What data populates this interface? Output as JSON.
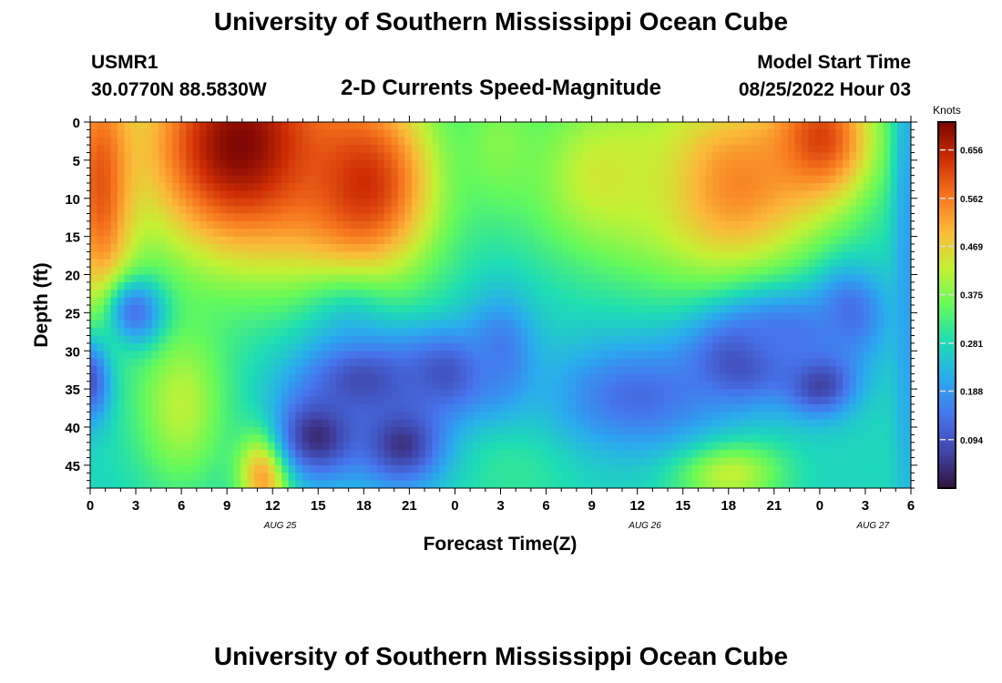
{
  "page": {
    "title": "University of Southern Mississippi Ocean Cube",
    "title_repeat": "University of Southern Mississippi Ocean Cube"
  },
  "station": {
    "id": "USMR1",
    "location": "30.0770N  88.5830W"
  },
  "model": {
    "start_label": "Model Start Time",
    "start_value": "08/25/2022 Hour 03"
  },
  "chart_data": {
    "type": "heatmap",
    "title": "2-D Currents Speed-Magnitude",
    "xlabel": "Forecast Time(Z)",
    "ylabel": "Depth (ft)",
    "x_tick_labels": [
      "0",
      "3",
      "6",
      "9",
      "12",
      "15",
      "18",
      "21",
      "0",
      "3",
      "6",
      "9",
      "12",
      "15",
      "18",
      "21",
      "0",
      "3",
      "6"
    ],
    "date_labels": [
      {
        "label": "AUG 25",
        "tick_index": 4
      },
      {
        "label": "AUG 26",
        "tick_index": 12
      },
      {
        "label": "AUG 27",
        "tick_index": 17
      }
    ],
    "y_ticks": [
      0,
      5,
      10,
      15,
      20,
      25,
      30,
      35,
      40,
      45
    ],
    "ylim": [
      0,
      48
    ],
    "y_inverted": true,
    "colorbar": {
      "label": "Knots",
      "ticks": [
        "0.656",
        "0.562",
        "0.469",
        "0.375",
        "0.281",
        "0.188",
        "0.094"
      ],
      "range": [
        0.0,
        0.71
      ]
    },
    "features": [
      {
        "t": 10,
        "d": 3,
        "v": 0.71,
        "sx": 5,
        "sy": 11
      },
      {
        "t": 18,
        "d": 8,
        "v": 0.64,
        "sx": 3.5,
        "sy": 9
      },
      {
        "t": 0.7,
        "d": 8,
        "v": 0.6,
        "sx": 1.6,
        "sy": 13
      },
      {
        "t": 42,
        "d": 8,
        "v": 0.56,
        "sx": 4.5,
        "sy": 9
      },
      {
        "t": 48,
        "d": 2,
        "v": 0.62,
        "sx": 2.5,
        "sy": 6
      },
      {
        "t": 34,
        "d": 7,
        "v": 0.44,
        "sx": 4,
        "sy": 8
      },
      {
        "t": 27,
        "d": 3,
        "v": 0.38,
        "sx": 2,
        "sy": 6
      },
      {
        "t": 17,
        "d": 27,
        "v": 0.26,
        "sx": 2.2,
        "sy": 4
      },
      {
        "t": 6,
        "d": 37,
        "v": 0.42,
        "sx": 2.2,
        "sy": 8
      },
      {
        "t": 11.5,
        "d": 46,
        "v": 0.56,
        "sx": 1.2,
        "sy": 4
      },
      {
        "t": 42,
        "d": 46,
        "v": 0.44,
        "sx": 2.5,
        "sy": 3
      },
      {
        "t": 28,
        "d": 45,
        "v": 0.31,
        "sx": 3,
        "sy": 5
      },
      {
        "t": 54,
        "d": 45,
        "v": 0.28,
        "sx": 3,
        "sy": 5
      },
      {
        "t": 3,
        "d": 25,
        "v": 0.14,
        "sx": 1.3,
        "sy": 3
      },
      {
        "t": 0,
        "d": 34,
        "v": 0.1,
        "sx": 1,
        "sy": 4
      },
      {
        "t": 15,
        "d": 41,
        "v": 0.03,
        "sx": 2,
        "sy": 4
      },
      {
        "t": 20.5,
        "d": 42,
        "v": 0.04,
        "sx": 2,
        "sy": 4
      },
      {
        "t": 18,
        "d": 34,
        "v": 0.08,
        "sx": 3,
        "sy": 4
      },
      {
        "t": 23.5,
        "d": 33,
        "v": 0.09,
        "sx": 2.5,
        "sy": 4
      },
      {
        "t": 27,
        "d": 30,
        "v": 0.15,
        "sx": 1.5,
        "sy": 5
      },
      {
        "t": 36,
        "d": 36,
        "v": 0.13,
        "sx": 4,
        "sy": 5
      },
      {
        "t": 43,
        "d": 31,
        "v": 0.06,
        "sx": 2.5,
        "sy": 4
      },
      {
        "t": 48,
        "d": 34,
        "v": 0.04,
        "sx": 1.6,
        "sy": 3
      },
      {
        "t": 50,
        "d": 25,
        "v": 0.13,
        "sx": 1.6,
        "sy": 4
      },
      {
        "t": 46,
        "d": 28,
        "v": 0.14,
        "sx": 3,
        "sy": 4
      },
      {
        "t": 53.7,
        "d": 20,
        "v": 0.2,
        "sx": 0.6,
        "sy": 25
      }
    ],
    "background_value": 0.27
  }
}
